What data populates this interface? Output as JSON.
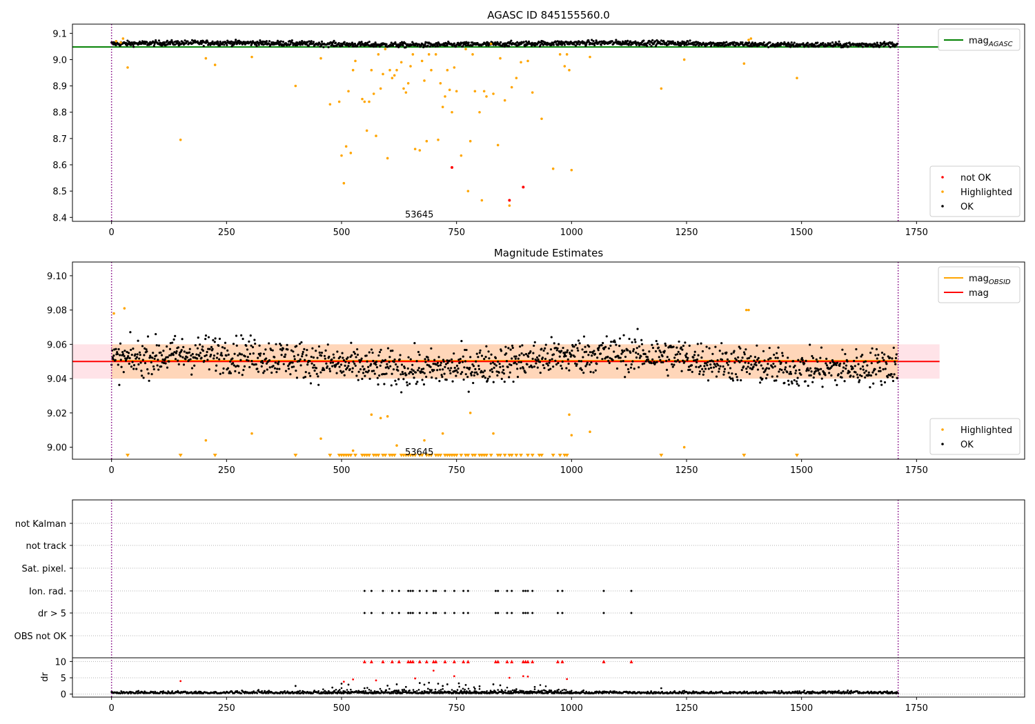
{
  "colors": {
    "ok": "#000000",
    "highlighted": "#ffa500",
    "not_ok": "#ff0000",
    "agasc_line": "#008000",
    "obsid_line": "#ffa500",
    "mag_line": "#ff0000",
    "band": "#ffc0cb",
    "obsid_marker": "#800080",
    "grid": "#b0b0b0"
  },
  "chart_data": [
    {
      "type": "scatter",
      "title": "AGASC ID 845155560.0",
      "xlim": [
        -85,
        1985
      ],
      "ylim": [
        8.385,
        9.135
      ],
      "xticks": [
        0,
        250,
        500,
        750,
        1000,
        1250,
        1500,
        1750
      ],
      "yticks": [
        8.4,
        8.5,
        8.6,
        8.7,
        8.8,
        8.9,
        9.0,
        9.1
      ],
      "obsid_boundaries": [
        0,
        1710
      ],
      "obsid_label": {
        "text": "53645",
        "x": 855,
        "y": 8.41
      },
      "ok_band": {
        "center": 9.06,
        "noise": 0.008,
        "x_range": [
          0,
          1710
        ]
      },
      "hlines": [
        {
          "name": "mag_AGASC",
          "value": 9.048,
          "x_range": [
            -85,
            1800
          ],
          "color": "#008000"
        }
      ],
      "legends": [
        {
          "position": "top-right",
          "entries": [
            {
              "marker": "line",
              "color": "#008000",
              "label": "mag",
              "subscript": "AGASC"
            }
          ]
        },
        {
          "position": "bottom-right",
          "entries": [
            {
              "marker": "dot",
              "color": "#ff0000",
              "label": "not OK"
            },
            {
              "marker": "dot",
              "color": "#ffa500",
              "label": "Highlighted"
            },
            {
              "marker": "dot",
              "color": "#000000",
              "label": "OK"
            }
          ]
        }
      ],
      "highlighted": [
        [
          10,
          9.07
        ],
        [
          20,
          9.065
        ],
        [
          25,
          9.08
        ],
        [
          35,
          8.97
        ],
        [
          150,
          8.695
        ],
        [
          205,
          9.005
        ],
        [
          225,
          8.98
        ],
        [
          305,
          9.01
        ],
        [
          400,
          8.9
        ],
        [
          455,
          9.005
        ],
        [
          475,
          8.83
        ],
        [
          495,
          8.84
        ],
        [
          500,
          8.635
        ],
        [
          505,
          8.53
        ],
        [
          510,
          8.67
        ],
        [
          515,
          8.88
        ],
        [
          520,
          8.645
        ],
        [
          525,
          8.96
        ],
        [
          530,
          8.995
        ],
        [
          545,
          8.85
        ],
        [
          550,
          8.84
        ],
        [
          555,
          8.73
        ],
        [
          560,
          8.84
        ],
        [
          565,
          8.96
        ],
        [
          570,
          8.87
        ],
        [
          575,
          8.71
        ],
        [
          580,
          9.02
        ],
        [
          585,
          8.89
        ],
        [
          590,
          8.945
        ],
        [
          595,
          9.04
        ],
        [
          600,
          8.625
        ],
        [
          605,
          8.96
        ],
        [
          610,
          8.93
        ],
        [
          615,
          8.94
        ],
        [
          620,
          8.96
        ],
        [
          630,
          8.99
        ],
        [
          635,
          8.89
        ],
        [
          640,
          8.875
        ],
        [
          645,
          8.91
        ],
        [
          650,
          8.975
        ],
        [
          655,
          9.02
        ],
        [
          660,
          8.66
        ],
        [
          670,
          8.655
        ],
        [
          675,
          8.995
        ],
        [
          680,
          8.92
        ],
        [
          685,
          8.69
        ],
        [
          690,
          9.02
        ],
        [
          695,
          8.96
        ],
        [
          705,
          9.02
        ],
        [
          710,
          8.695
        ],
        [
          715,
          8.91
        ],
        [
          720,
          8.82
        ],
        [
          725,
          8.86
        ],
        [
          730,
          8.96
        ],
        [
          735,
          8.885
        ],
        [
          740,
          8.8
        ],
        [
          745,
          8.97
        ],
        [
          750,
          8.88
        ],
        [
          760,
          8.635
        ],
        [
          770,
          9.04
        ],
        [
          775,
          8.5
        ],
        [
          780,
          8.69
        ],
        [
          785,
          9.02
        ],
        [
          790,
          8.88
        ],
        [
          800,
          8.8
        ],
        [
          805,
          8.465
        ],
        [
          810,
          8.88
        ],
        [
          815,
          8.86
        ],
        [
          825,
          9.06
        ],
        [
          830,
          8.87
        ],
        [
          840,
          8.675
        ],
        [
          845,
          9.005
        ],
        [
          855,
          8.845
        ],
        [
          865,
          8.445
        ],
        [
          870,
          8.895
        ],
        [
          880,
          8.93
        ],
        [
          890,
          8.99
        ],
        [
          905,
          8.995
        ],
        [
          915,
          8.875
        ],
        [
          935,
          8.775
        ],
        [
          960,
          8.585
        ],
        [
          975,
          9.02
        ],
        [
          985,
          8.975
        ],
        [
          990,
          9.02
        ],
        [
          995,
          8.96
        ],
        [
          1000,
          8.58
        ],
        [
          1040,
          9.01
        ],
        [
          1195,
          8.89
        ],
        [
          1245,
          9.0
        ],
        [
          1375,
          8.985
        ],
        [
          1385,
          9.075
        ],
        [
          1390,
          9.08
        ],
        [
          1490,
          8.93
        ]
      ],
      "not_ok": [
        [
          740,
          8.59
        ],
        [
          895,
          8.515
        ],
        [
          865,
          8.465
        ]
      ]
    },
    {
      "type": "scatter",
      "title": "Magnitude Estimates",
      "xlim": [
        -85,
        1985
      ],
      "ylim": [
        8.993,
        9.108
      ],
      "xticks": [
        0,
        250,
        500,
        750,
        1000,
        1250,
        1500,
        1750
      ],
      "yticks": [
        9.0,
        9.02,
        9.04,
        9.06,
        9.08,
        9.1
      ],
      "obsid_boundaries": [
        0,
        1710
      ],
      "obsid_label": {
        "text": "53645",
        "x": 855,
        "y": 8.997
      },
      "band": {
        "low": 9.04,
        "high": 9.06,
        "x_range": [
          -85,
          1800
        ],
        "color": "#ffc0cb"
      },
      "obsid_band": {
        "low": 9.04,
        "high": 9.06,
        "x_range": [
          0,
          1710
        ],
        "color": "#ffa500"
      },
      "hlines": [
        {
          "name": "mag_OBSID",
          "value": 9.0505,
          "x_range": [
            0,
            1710
          ],
          "color": "#ffa500"
        },
        {
          "name": "mag",
          "value": 9.05,
          "x_range": [
            -85,
            1800
          ],
          "color": "#ff0000"
        }
      ],
      "ok_band": {
        "center": 9.05,
        "noise": 0.009,
        "x_range": [
          0,
          1710
        ]
      },
      "legends": [
        {
          "position": "top-right",
          "entries": [
            {
              "marker": "line",
              "color": "#ffa500",
              "label": "mag",
              "subscript": "OBSID"
            },
            {
              "marker": "line",
              "color": "#ff0000",
              "label": "mag"
            }
          ]
        },
        {
          "position": "bottom-right",
          "entries": [
            {
              "marker": "dot",
              "color": "#ffa500",
              "label": "Highlighted"
            },
            {
              "marker": "dot",
              "color": "#000000",
              "label": "OK"
            }
          ]
        }
      ],
      "highlighted": [
        [
          5,
          9.078
        ],
        [
          28,
          9.081
        ],
        [
          205,
          9.004
        ],
        [
          305,
          9.008
        ],
        [
          455,
          9.005
        ],
        [
          525,
          8.998
        ],
        [
          565,
          9.019
        ],
        [
          585,
          9.017
        ],
        [
          600,
          9.018
        ],
        [
          620,
          9.001
        ],
        [
          680,
          9.004
        ],
        [
          720,
          9.008
        ],
        [
          780,
          9.02
        ],
        [
          830,
          9.008
        ],
        [
          995,
          9.019
        ],
        [
          1000,
          9.007
        ],
        [
          1040,
          9.009
        ],
        [
          1245,
          9.0
        ],
        [
          1380,
          9.08
        ],
        [
          1385,
          9.08
        ]
      ],
      "below_range_x": [
        35,
        150,
        225,
        400,
        475,
        495,
        500,
        505,
        510,
        515,
        520,
        530,
        545,
        550,
        555,
        560,
        570,
        575,
        580,
        590,
        595,
        605,
        610,
        615,
        630,
        635,
        640,
        645,
        650,
        655,
        660,
        670,
        675,
        685,
        690,
        695,
        705,
        710,
        715,
        725,
        730,
        735,
        740,
        745,
        750,
        760,
        770,
        775,
        785,
        790,
        800,
        805,
        810,
        815,
        825,
        840,
        845,
        855,
        865,
        870,
        880,
        890,
        905,
        915,
        930,
        935,
        960,
        975,
        985,
        990,
        1195,
        1375,
        1490
      ]
    },
    {
      "type": "scatter",
      "title": "",
      "xlim": [
        -85,
        1985
      ],
      "flag_rows": [
        "not Kalman",
        "not track",
        "Sat. pixel.",
        "Ion. rad.",
        "dr > 5",
        "OBS not OK"
      ],
      "flag_points": {
        "Ion. rad.": [
          550,
          565,
          590,
          610,
          625,
          645,
          650,
          655,
          670,
          685,
          700,
          705,
          725,
          745,
          765,
          775,
          835,
          840,
          860,
          870,
          895,
          900,
          905,
          915,
          970,
          980,
          1070,
          1130
        ],
        "dr > 5": [
          550,
          565,
          590,
          610,
          625,
          645,
          650,
          655,
          670,
          685,
          700,
          705,
          725,
          745,
          765,
          775,
          835,
          840,
          860,
          870,
          895,
          900,
          905,
          915,
          970,
          980,
          1070,
          1130
        ]
      },
      "dr": {
        "ylabel": "dr",
        "yticks": [
          0,
          5,
          10
        ],
        "ylim": [
          -0.5,
          10.5
        ],
        "flagged_x": [
          550,
          565,
          590,
          610,
          625,
          645,
          650,
          655,
          670,
          685,
          700,
          705,
          725,
          745,
          765,
          775,
          835,
          840,
          860,
          870,
          895,
          900,
          905,
          915,
          970,
          980,
          1070,
          1130
        ],
        "outliers": [
          [
            150,
            4.0
          ],
          [
            400,
            2.5
          ],
          [
            480,
            2.0
          ],
          [
            500,
            3.2
          ],
          [
            505,
            3.8
          ],
          [
            515,
            2.9
          ],
          [
            525,
            4.5
          ],
          [
            550,
            1.8
          ],
          [
            575,
            4.2
          ],
          [
            600,
            2.6
          ],
          [
            620,
            3.0
          ],
          [
            640,
            2.2
          ],
          [
            660,
            4.8
          ],
          [
            670,
            3.4
          ],
          [
            680,
            2.9
          ],
          [
            690,
            3.5
          ],
          [
            700,
            7.2
          ],
          [
            710,
            3.2
          ],
          [
            720,
            2.5
          ],
          [
            730,
            3.0
          ],
          [
            745,
            5.5
          ],
          [
            755,
            3.3
          ],
          [
            770,
            2.8
          ],
          [
            790,
            1.6
          ],
          [
            800,
            2.4
          ],
          [
            830,
            3.0
          ],
          [
            845,
            2.7
          ],
          [
            865,
            5.0
          ],
          [
            880,
            1.5
          ],
          [
            895,
            5.5
          ],
          [
            905,
            5.4
          ],
          [
            920,
            2.2
          ],
          [
            990,
            4.6
          ],
          [
            1195,
            1.8
          ]
        ]
      },
      "xticks": [
        0,
        250,
        500,
        750,
        1000,
        1250,
        1500,
        1750
      ],
      "obsid_boundaries": [
        0,
        1710
      ]
    }
  ]
}
